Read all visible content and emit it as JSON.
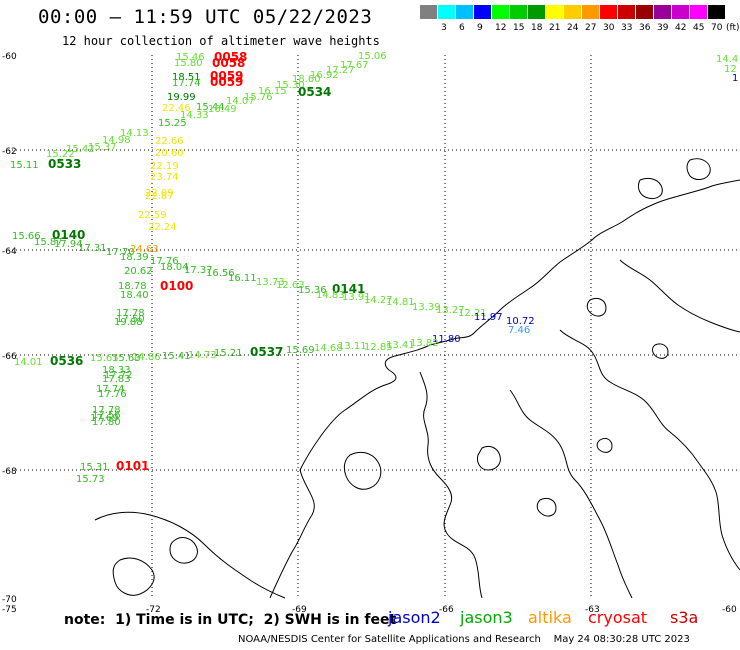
{
  "header": {
    "title": "00:00 – 11:59 UTC 05/22/2023",
    "subtitle": "12 hour collection of altimeter wave heights"
  },
  "legend": {
    "unit": "(ft)",
    "items": [
      {
        "label": "",
        "color": "#808080"
      },
      {
        "label": "3",
        "color": "#00ffff"
      },
      {
        "label": "6",
        "color": "#00c0ff"
      },
      {
        "label": "9",
        "color": "#0000ff"
      },
      {
        "label": "12",
        "color": "#00ff00"
      },
      {
        "label": "15",
        "color": "#00cc00"
      },
      {
        "label": "18",
        "color": "#009900"
      },
      {
        "label": "21",
        "color": "#ffff00"
      },
      {
        "label": "24",
        "color": "#ffcc00"
      },
      {
        "label": "27",
        "color": "#ff9900"
      },
      {
        "label": "30",
        "color": "#ff0000"
      },
      {
        "label": "33",
        "color": "#cc0000"
      },
      {
        "label": "36",
        "color": "#990000"
      },
      {
        "label": "39",
        "color": "#990099"
      },
      {
        "label": "42",
        "color": "#cc00cc"
      },
      {
        "label": "45",
        "color": "#ff00ff"
      },
      {
        "label": "70",
        "color": "#000000"
      }
    ]
  },
  "axes": {
    "lat_labels": [
      "-60",
      "-62",
      "-64",
      "-66",
      "-68",
      "-70"
    ],
    "lon_labels": [
      "-75",
      "-72",
      "-69",
      "-66",
      "-63",
      "-60"
    ]
  },
  "colors": {
    "jason2": "#0000cc",
    "jason3": "#00aa00",
    "altika": "#ff9900",
    "cryosat": "#ff0000",
    "s3a": "#cc0000",
    "light_green": "#66dd33",
    "mid_green": "#33bb22",
    "yellow": "#f2e600",
    "dark_green": "#007700",
    "coast": "#000000"
  },
  "observations": [
    {
      "text": "15.46",
      "tone": "light_green"
    },
    {
      "text": "15.80",
      "tone": "light_green"
    },
    {
      "text": "0058",
      "tone": "cryosat"
    },
    {
      "text": "0058",
      "tone": "cryosat"
    },
    {
      "text": "15.06",
      "tone": "light_green"
    },
    {
      "text": "17.67",
      "tone": "light_green"
    },
    {
      "text": "17.27",
      "tone": "light_green"
    },
    {
      "text": "18.51",
      "tone": "dark_green"
    },
    {
      "text": "0059",
      "tone": "cryosat"
    },
    {
      "text": "17.74",
      "tone": "mid_green"
    },
    {
      "text": "0059",
      "tone": "cryosat"
    },
    {
      "text": "16.92",
      "tone": "light_green"
    },
    {
      "text": "18.60",
      "tone": "light_green"
    },
    {
      "text": "15.30",
      "tone": "light_green"
    },
    {
      "text": "0534",
      "tone": "dark_green"
    },
    {
      "text": "16.15",
      "tone": "light_green"
    },
    {
      "text": "15.76",
      "tone": "light_green"
    },
    {
      "text": "19.99",
      "tone": "dark_green"
    },
    {
      "text": "14.07",
      "tone": "light_green"
    },
    {
      "text": "22.46",
      "tone": "yellow"
    },
    {
      "text": "15.44",
      "tone": "mid_green"
    },
    {
      "text": "14.33",
      "tone": "light_green"
    },
    {
      "text": "16.49",
      "tone": "light_green"
    },
    {
      "text": "15.25",
      "tone": "mid_green"
    },
    {
      "text": "14.13",
      "tone": "light_green"
    },
    {
      "text": "14.98",
      "tone": "light_green"
    },
    {
      "text": "15.37",
      "tone": "light_green"
    },
    {
      "text": "22.66",
      "tone": "yellow"
    },
    {
      "text": "15.42",
      "tone": "light_green"
    },
    {
      "text": "15.22",
      "tone": "light_green"
    },
    {
      "text": "20.60",
      "tone": "yellow"
    },
    {
      "text": "15.11",
      "tone": "mid_green"
    },
    {
      "text": "0533",
      "tone": "dark_green"
    },
    {
      "text": "22.19",
      "tone": "yellow"
    },
    {
      "text": "23.74",
      "tone": "yellow"
    },
    {
      "text": "22.09",
      "tone": "yellow"
    },
    {
      "text": "22.87",
      "tone": "yellow"
    },
    {
      "text": "22.59",
      "tone": "yellow"
    },
    {
      "text": "22.24",
      "tone": "yellow"
    },
    {
      "text": "15.66",
      "tone": "mid_green"
    },
    {
      "text": "0140",
      "tone": "dark_green"
    },
    {
      "text": "15.87",
      "tone": "mid_green"
    },
    {
      "text": "17.94",
      "tone": "mid_green"
    },
    {
      "text": "17.31",
      "tone": "mid_green"
    },
    {
      "text": "17.70",
      "tone": "mid_green"
    },
    {
      "text": "24.63",
      "tone": "altika"
    },
    {
      "text": "18.39",
      "tone": "mid_green"
    },
    {
      "text": "17.76",
      "tone": "mid_green"
    },
    {
      "text": "18.04",
      "tone": "mid_green"
    },
    {
      "text": "17.37",
      "tone": "mid_green"
    },
    {
      "text": "16.56",
      "tone": "mid_green"
    },
    {
      "text": "20.62",
      "tone": "mid_green"
    },
    {
      "text": "16.11",
      "tone": "mid_green"
    },
    {
      "text": "13.73",
      "tone": "light_green"
    },
    {
      "text": "12.63",
      "tone": "light_green"
    },
    {
      "text": "18.78",
      "tone": "mid_green"
    },
    {
      "text": "0100",
      "tone": "cryosat"
    },
    {
      "text": "15.36",
      "tone": "mid_green"
    },
    {
      "text": "0141",
      "tone": "dark_green"
    },
    {
      "text": "14.83",
      "tone": "light_green"
    },
    {
      "text": "13.91",
      "tone": "light_green"
    },
    {
      "text": "14.27",
      "tone": "light_green"
    },
    {
      "text": "18.40",
      "tone": "mid_green"
    },
    {
      "text": "14.81",
      "tone": "light_green"
    },
    {
      "text": "13.39",
      "tone": "light_green"
    },
    {
      "text": "13.27",
      "tone": "light_green"
    },
    {
      "text": "12.21",
      "tone": "light_green"
    },
    {
      "text": "17.78",
      "tone": "mid_green"
    },
    {
      "text": "11.97",
      "tone": "jason2"
    },
    {
      "text": "10.72",
      "tone": "jason2"
    },
    {
      "text": "17.50",
      "tone": "mid_green"
    },
    {
      "text": "19.88",
      "tone": "mid_green"
    },
    {
      "text": "7.46",
      "tone": "light_blue"
    },
    {
      "text": "11.80",
      "tone": "jason2"
    },
    {
      "text": "13.82",
      "tone": "light_green"
    },
    {
      "text": "13.41",
      "tone": "light_green"
    },
    {
      "text": "12.85",
      "tone": "light_green"
    },
    {
      "text": "13.11",
      "tone": "light_green"
    },
    {
      "text": "14.68",
      "tone": "light_green"
    },
    {
      "text": "15.69",
      "tone": "mid_green"
    },
    {
      "text": "0537",
      "tone": "dark_green"
    },
    {
      "text": "15.21",
      "tone": "mid_green"
    },
    {
      "text": "14.73",
      "tone": "light_green"
    },
    {
      "text": "15.41",
      "tone": "mid_green"
    },
    {
      "text": "14.86",
      "tone": "light_green"
    },
    {
      "text": "15.63",
      "tone": "mid_green"
    },
    {
      "text": "15.65",
      "tone": "light_green"
    },
    {
      "text": "14.01",
      "tone": "light_green"
    },
    {
      "text": "0536",
      "tone": "dark_green"
    },
    {
      "text": "18.33",
      "tone": "mid_green"
    },
    {
      "text": "17.72",
      "tone": "mid_green"
    },
    {
      "text": "17.83",
      "tone": "mid_green"
    },
    {
      "text": "17.74",
      "tone": "mid_green"
    },
    {
      "text": "17.76",
      "tone": "mid_green"
    },
    {
      "text": "17.78",
      "tone": "mid_green"
    },
    {
      "text": "17.56",
      "tone": "mid_green"
    },
    {
      "text": "17.69",
      "tone": "mid_green"
    },
    {
      "text": "17.80",
      "tone": "mid_green"
    },
    {
      "text": "15.31",
      "tone": "mid_green"
    },
    {
      "text": "0101",
      "tone": "cryosat"
    },
    {
      "text": "15.73",
      "tone": "mid_green"
    },
    {
      "text": "14.4",
      "tone": "light_green"
    },
    {
      "text": "12",
      "tone": "light_green"
    },
    {
      "text": "1",
      "tone": "jason2"
    }
  ],
  "footer": {
    "note": "note:  1) Time is in UTC;  2) SWH is in feet",
    "sats": [
      "jason2",
      "jason3",
      "altika",
      "cryosat",
      "s3a"
    ],
    "credit": "NOAA/NESDIS Center for Satellite Applications and Research    May 24 08:30:28 UTC 2023"
  }
}
